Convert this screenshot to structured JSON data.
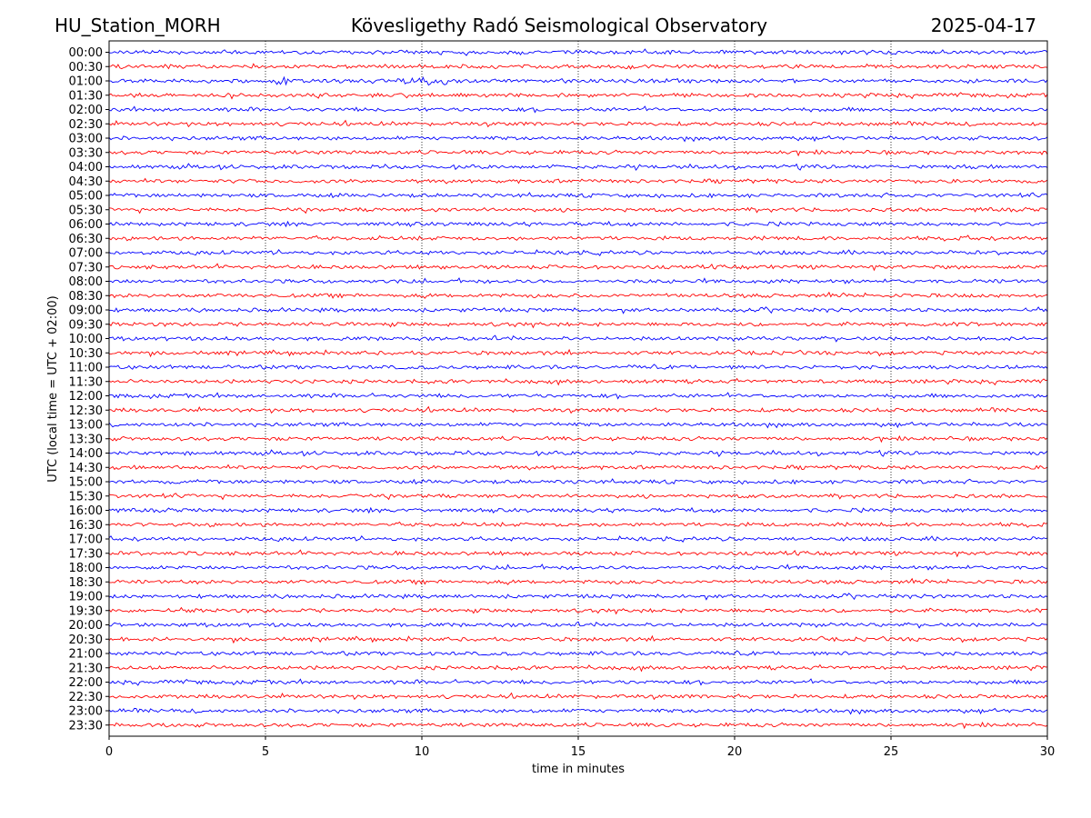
{
  "header": {
    "station": "HU_Station_MORH",
    "observatory": "Kövesligethy Radó Seismological Observatory",
    "date": "2025-04-17"
  },
  "chart_data": {
    "type": "line",
    "title": "Kövesligethy Radó Seismological Observatory",
    "xlabel": "time in minutes",
    "ylabel": "UTC (local time = UTC + 02:00)",
    "xlim": [
      0,
      30
    ],
    "x_ticks": [
      "0",
      "5",
      "10",
      "15",
      "20",
      "25",
      "30"
    ],
    "x_tick_values": [
      0,
      5,
      10,
      15,
      20,
      25,
      30
    ],
    "grid_x": true,
    "grid_y": false,
    "series_colors": [
      "#0000ff",
      "#ff0000"
    ],
    "rows": [
      "00:00",
      "00:30",
      "01:00",
      "01:30",
      "02:00",
      "02:30",
      "03:00",
      "03:30",
      "04:00",
      "04:30",
      "05:00",
      "05:30",
      "06:00",
      "06:30",
      "07:00",
      "07:30",
      "08:00",
      "08:30",
      "09:00",
      "09:30",
      "10:00",
      "10:30",
      "11:00",
      "11:30",
      "12:00",
      "12:30",
      "13:00",
      "13:30",
      "14:00",
      "14:30",
      "15:00",
      "15:30",
      "16:00",
      "16:30",
      "17:00",
      "17:30",
      "18:00",
      "18:30",
      "19:00",
      "19:30",
      "20:00",
      "20:30",
      "21:00",
      "21:30",
      "22:00",
      "22:30",
      "23:00",
      "23:30"
    ],
    "events": [
      {
        "row": "01:00",
        "start_min": 5.3,
        "end_min": 5.7
      },
      {
        "row": "01:00",
        "start_min": 9.2,
        "end_min": 10.8
      }
    ]
  }
}
